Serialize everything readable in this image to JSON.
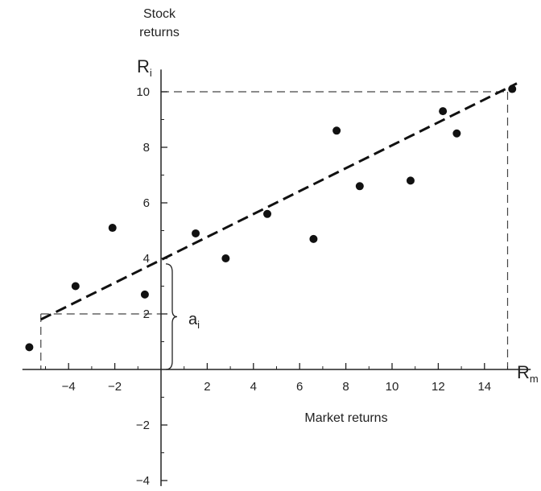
{
  "chart_data": {
    "type": "scatter",
    "y_axis_title_lines": [
      "Stock",
      "returns"
    ],
    "y_axis_symbol": "R",
    "y_axis_symbol_sub": "i",
    "x_axis_title": "Market returns",
    "x_axis_symbol": "R",
    "x_axis_symbol_sub": "m",
    "xlim": [
      -6,
      16
    ],
    "ylim": [
      -4.2,
      10.8
    ],
    "x_ticks": [
      -4,
      -2,
      2,
      4,
      6,
      8,
      10,
      12,
      14
    ],
    "x_tick_labels": [
      "−4",
      "−2",
      "2",
      "4",
      "6",
      "8",
      "10",
      "12",
      "14"
    ],
    "y_ticks": [
      -4,
      -2,
      2,
      4,
      6,
      8,
      10
    ],
    "y_tick_labels": [
      "−4",
      "−2",
      "2",
      "4",
      "6",
      "8",
      "10"
    ],
    "points": {
      "x": [
        -5.7,
        -3.7,
        -2.1,
        -0.7,
        1.5,
        2.8,
        4.6,
        6.6,
        7.6,
        8.6,
        10.8,
        12.2,
        12.8,
        15.2
      ],
      "y": [
        0.8,
        3.0,
        5.1,
        2.7,
        4.9,
        4.0,
        5.6,
        4.7,
        8.6,
        6.6,
        6.8,
        9.3,
        8.5,
        10.1
      ]
    },
    "fit_line": {
      "x": [
        -5.2,
        15.4
      ],
      "y": [
        1.8,
        10.3
      ]
    },
    "intercept_label": "a",
    "intercept_label_sub": "i",
    "intercept_value": 3.8,
    "guide_low": {
      "x": -5.2,
      "y": 2.0
    },
    "guide_high": {
      "x": 15.0,
      "y": 10.0
    },
    "grid": false,
    "legend": "none"
  }
}
